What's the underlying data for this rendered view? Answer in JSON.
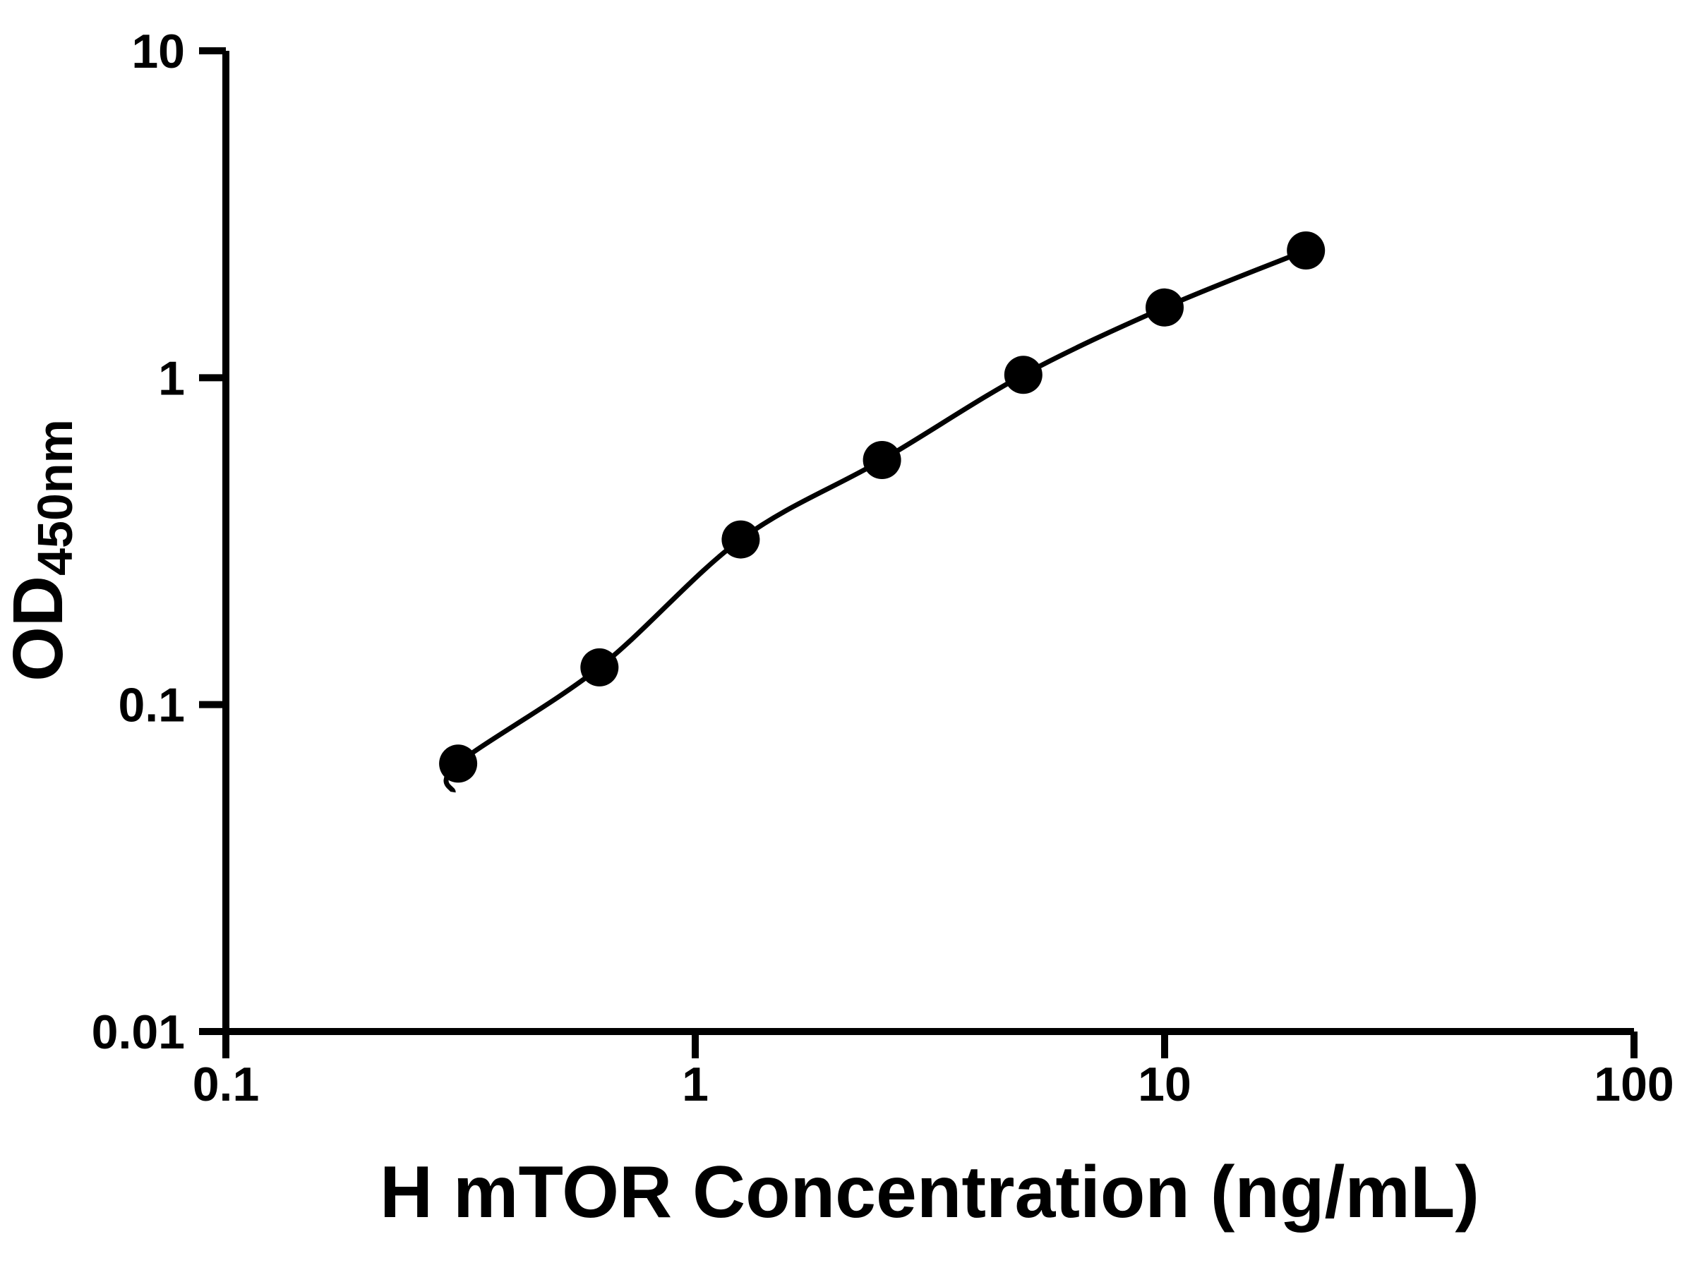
{
  "figure": {
    "background": "#ffffff"
  },
  "chart_data": {
    "type": "scatter",
    "variant": "elisa-standard-curve",
    "title": "",
    "xlabel": "H mTOR Concentration (ng/mL)",
    "ylabel_main": "OD",
    "ylabel_sub": "450nm",
    "x_scale": "log10",
    "y_scale": "log10",
    "xlim": [
      0.1,
      100
    ],
    "ylim": [
      0.01,
      10
    ],
    "grid": false,
    "x": [
      0.3125,
      0.625,
      1.25,
      2.5,
      5,
      10,
      20
    ],
    "y": [
      0.066,
      0.13,
      0.32,
      0.56,
      1.02,
      1.64,
      2.45
    ],
    "x_ticks": [
      {
        "value": 0.1,
        "label": "0.1"
      },
      {
        "value": 1,
        "label": "1"
      },
      {
        "value": 10,
        "label": "10"
      },
      {
        "value": 100,
        "label": "100"
      }
    ],
    "y_ticks": [
      {
        "value": 0.01,
        "label": "0.01"
      },
      {
        "value": 0.1,
        "label": "0.1"
      },
      {
        "value": 1,
        "label": "1"
      },
      {
        "value": 10,
        "label": "10"
      }
    ],
    "curve_tail": {
      "x": 0.305,
      "y": 0.054
    },
    "marker": "circle",
    "marker_radius_px": 27,
    "marker_color": "#000000",
    "line_color": "#000000",
    "axis_color": "#000000"
  }
}
